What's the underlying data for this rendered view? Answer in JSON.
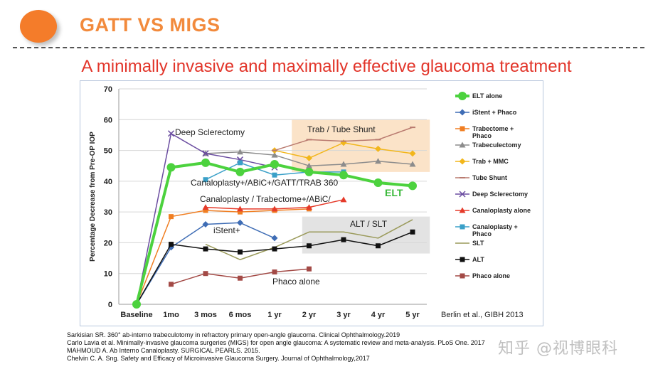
{
  "header": {
    "title": "GATT VS MIGS"
  },
  "subtitle": "A minimally invasive and maximally effective glaucoma treatment",
  "chart_data": {
    "type": "line",
    "ylabel": "Percentage Decrease from Pre-OP IOP",
    "ylim": [
      0,
      70
    ],
    "yticks": [
      0,
      10,
      20,
      30,
      40,
      50,
      60,
      70
    ],
    "categories": [
      "Baseline",
      "1mo",
      "3 mos",
      "6 mos",
      "1 yr",
      "2 yr",
      "3 yr",
      "4 yr",
      "5 yr"
    ],
    "credit": "Berlin et al., GIBH 2013",
    "series": [
      {
        "name": "ELT alone",
        "color": "#4cd23e",
        "marker": "circle",
        "width": 4,
        "values": [
          0,
          44.5,
          46,
          43,
          45.5,
          43,
          42,
          39.5,
          38.5
        ]
      },
      {
        "name": "iStent + Phaco",
        "color": "#3f6db5",
        "marker": "diamond",
        "width": 1.5,
        "values": [
          0,
          18.5,
          26,
          26.5,
          21.5,
          null,
          null,
          null,
          null
        ]
      },
      {
        "name": "Trabectome + Phaco",
        "color": "#f07e22",
        "marker": "square",
        "width": 1.5,
        "values": [
          0,
          28.5,
          30.5,
          30,
          30.5,
          31,
          null,
          null,
          null
        ]
      },
      {
        "name": "Trabeculectomy",
        "color": "#8c8c8c",
        "marker": "triangle",
        "width": 1.5,
        "values": [
          null,
          null,
          49,
          49.5,
          48.5,
          45,
          45.5,
          46.5,
          45.5
        ]
      },
      {
        "name": "Trab + MMC",
        "color": "#f2b61b",
        "marker": "diamond",
        "width": 1.5,
        "values": [
          null,
          null,
          null,
          null,
          50,
          47.5,
          52.5,
          50.5,
          49
        ]
      },
      {
        "name": "Tube Shunt",
        "color": "#b97a6f",
        "marker": "dash",
        "width": 1.5,
        "values": [
          null,
          null,
          null,
          null,
          50,
          53.5,
          53,
          53.5,
          57.5
        ]
      },
      {
        "name": "Deep Sclerectomy",
        "color": "#6a4ca0",
        "marker": "x",
        "width": 1.5,
        "values": [
          0,
          55.5,
          49,
          47,
          44.5,
          null,
          null,
          null,
          null
        ]
      },
      {
        "name": "Canaloplasty alone",
        "color": "#e53a2a",
        "marker": "triangle",
        "width": 1.5,
        "values": [
          null,
          null,
          31.5,
          31,
          31,
          31.5,
          34,
          null,
          null
        ]
      },
      {
        "name": "Canaloplasty + Phaco",
        "color": "#3aa0c8",
        "marker": "square",
        "width": 1.5,
        "values": [
          null,
          null,
          40.5,
          46,
          42,
          43,
          43,
          null,
          null
        ]
      },
      {
        "name": "SLT",
        "color": "#9a9a5a",
        "marker": "none",
        "width": 1.5,
        "values": [
          null,
          null,
          19.5,
          14.5,
          18.5,
          23.5,
          23.5,
          21.5,
          27.5
        ]
      },
      {
        "name": "ALT",
        "color": "#111111",
        "marker": "square",
        "width": 1.5,
        "values": [
          0,
          19.5,
          18,
          17,
          18,
          19,
          21,
          19,
          23.5
        ]
      },
      {
        "name": "Phaco alone",
        "color": "#a34a46",
        "marker": "square",
        "width": 1.5,
        "values": [
          null,
          6.5,
          10,
          8.5,
          10.5,
          11.5,
          null,
          null,
          null
        ]
      }
    ],
    "annotations": [
      "Deep Sclerectomy",
      "Trab / Tube Shunt",
      "Canaloplasty+/ABiC+/GATT/TRAB 360",
      "ELT",
      "Canaloplasty / Trabectome+/ABiC/",
      "ALT / SLT",
      "iStent+",
      "Phaco alone"
    ],
    "highlight_regions": [
      {
        "label": "Trab / Tube Shunt",
        "x_from": 4.5,
        "x_to": 8.5,
        "y_from": 43,
        "y_to": 60,
        "color": "#fbe3c8"
      },
      {
        "label": "ALT / SLT",
        "x_from": 4.8,
        "x_to": 8.5,
        "y_from": 16.5,
        "y_to": 28.5,
        "color": "#e3e3e3"
      }
    ]
  },
  "references": [
    "Sarkisian SR. 360° ab-interno trabeculotomy in refractory primary open-angle glaucoma. Clinical Ophthalmology.2019",
    "Carlo Lavia et al. Minimally-invasive glaucoma surgeries (MIGS) for open angle glaucoma: A systematic review and meta-analysis. PLoS One. 2017",
    "MAHMOUD A. Ab Interno Canaloplasty. SURGICAL PEARLS. 2015.",
    "Chelvin C. A. Sng. Safety and Efficacy of Microinvasive Glaucoma Surgery. Journal of Ophthalmology,2017"
  ],
  "watermark": "知乎 @视博眼科"
}
